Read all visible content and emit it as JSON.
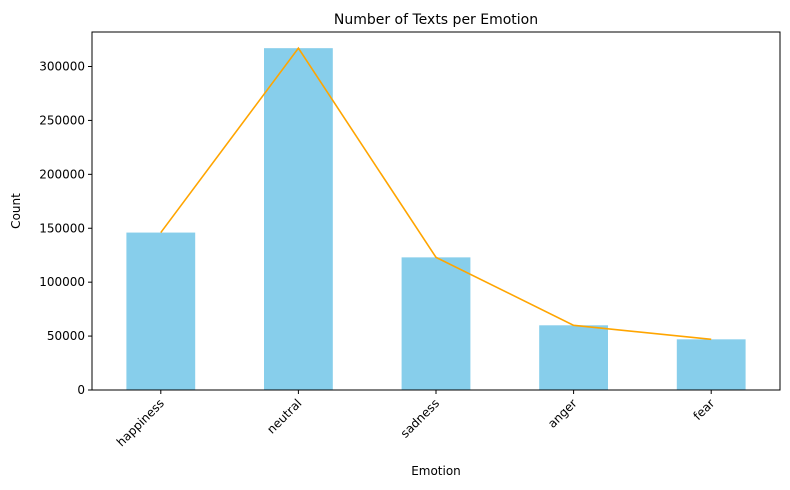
{
  "chart_data": {
    "type": "bar",
    "title": "Number of Texts per Emotion",
    "xlabel": "Emotion",
    "ylabel": "Count",
    "categories": [
      "happiness",
      "neutral",
      "sadness",
      "anger",
      "fear"
    ],
    "values": [
      146000,
      317000,
      123000,
      60000,
      47000
    ],
    "ylim": [
      0,
      332000
    ],
    "yticks": [
      0,
      50000,
      100000,
      150000,
      200000,
      250000,
      300000
    ],
    "ytick_labels": [
      "0",
      "50000",
      "100000",
      "150000",
      "200000",
      "250000",
      "300000"
    ],
    "grid": false,
    "legend": "none",
    "bar_color": "#87ceeb",
    "line_color": "#ffa500",
    "overlay": "line through bar tops"
  }
}
